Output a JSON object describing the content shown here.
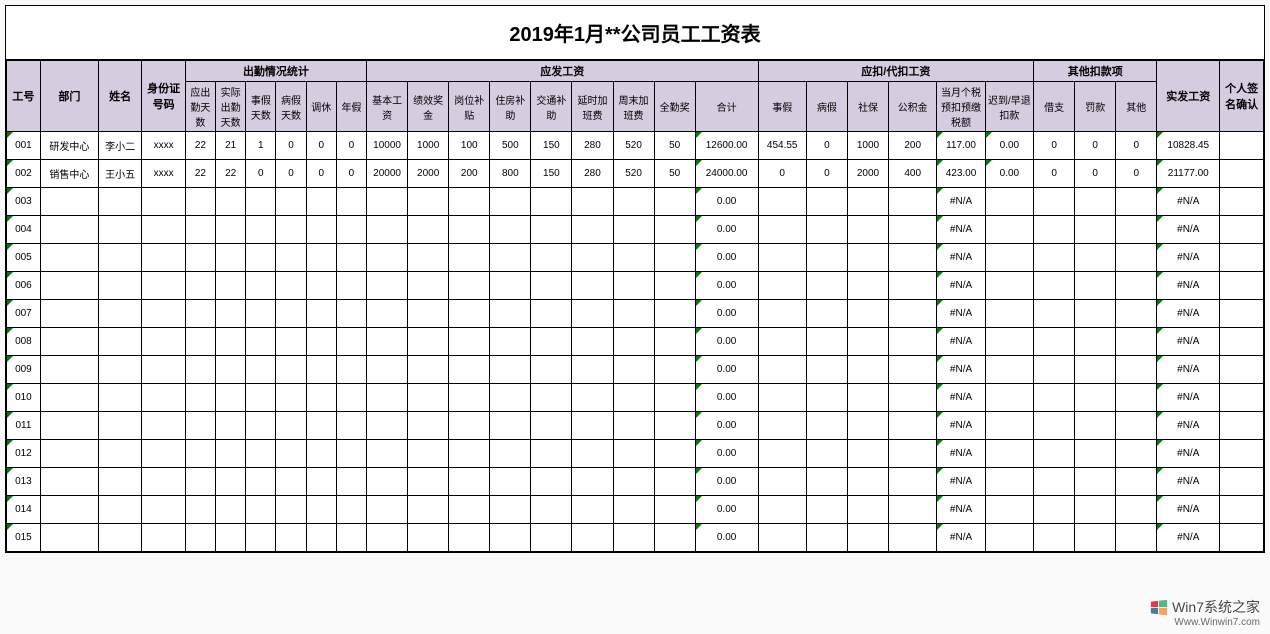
{
  "title": "2019年1月**公司员工工资表",
  "header_bg": "#d5cce0",
  "groups": {
    "attendance": "出勤情况统计",
    "payable": "应发工资",
    "deduct": "应扣/代扣工资",
    "other": "其他扣款项"
  },
  "columns": {
    "id": "工号",
    "dept": "部门",
    "name": "姓名",
    "idno": "身份证号码",
    "att1": "应出勤天数",
    "att2": "实际出勤天数",
    "att3": "事假天数",
    "att4": "病假天数",
    "att5": "调休",
    "att6": "年假",
    "pay1": "基本工资",
    "pay2": "绩效奖金",
    "pay3": "岗位补贴",
    "pay4": "住房补助",
    "pay5": "交通补助",
    "pay6": "延时加班费",
    "pay7": "周末加班费",
    "pay8": "全勤奖",
    "paytotal": "合计",
    "ded1": "事假",
    "ded2": "病假",
    "ded3": "社保",
    "ded4": "公积金",
    "ded5": "当月个税预扣预缴税额",
    "ded6": "迟到/早退扣款",
    "oth1": "借支",
    "oth2": "罚款",
    "oth3": "其他",
    "net": "实发工资",
    "sign": "个人签名确认"
  },
  "rows": [
    {
      "id": "001",
      "dept": "研发中心",
      "name": "李小二",
      "idno": "xxxx",
      "att": [
        22,
        21,
        1,
        0,
        0,
        0
      ],
      "pay": [
        10000,
        1000,
        100,
        500,
        150,
        280,
        520,
        50
      ],
      "total": "12600.00",
      "ded": [
        "454.55",
        "0",
        "1000",
        "200",
        "117.00",
        "0.00"
      ],
      "oth": [
        "0",
        "0",
        "0"
      ],
      "net": "10828.45"
    },
    {
      "id": "002",
      "dept": "销售中心",
      "name": "王小五",
      "idno": "xxxx",
      "att": [
        22,
        22,
        0,
        0,
        0,
        0
      ],
      "pay": [
        20000,
        2000,
        200,
        800,
        150,
        280,
        520,
        50
      ],
      "total": "24000.00",
      "ded": [
        "0",
        "0",
        "2000",
        "400",
        "423.00",
        "0.00"
      ],
      "oth": [
        "0",
        "0",
        "0"
      ],
      "net": "21177.00"
    },
    {
      "id": "003",
      "total": "0.00",
      "tax": "#N/A",
      "net": "#N/A"
    },
    {
      "id": "004",
      "total": "0.00",
      "tax": "#N/A",
      "net": "#N/A"
    },
    {
      "id": "005",
      "total": "0.00",
      "tax": "#N/A",
      "net": "#N/A"
    },
    {
      "id": "006",
      "total": "0.00",
      "tax": "#N/A",
      "net": "#N/A"
    },
    {
      "id": "007",
      "total": "0.00",
      "tax": "#N/A",
      "net": "#N/A"
    },
    {
      "id": "008",
      "total": "0.00",
      "tax": "#N/A",
      "net": "#N/A"
    },
    {
      "id": "009",
      "total": "0.00",
      "tax": "#N/A",
      "net": "#N/A"
    },
    {
      "id": "010",
      "total": "0.00",
      "tax": "#N/A",
      "net": "#N/A"
    },
    {
      "id": "011",
      "total": "0.00",
      "tax": "#N/A",
      "net": "#N/A"
    },
    {
      "id": "012",
      "total": "0.00",
      "tax": "#N/A",
      "net": "#N/A"
    },
    {
      "id": "013",
      "total": "0.00",
      "tax": "#N/A",
      "net": "#N/A"
    },
    {
      "id": "014",
      "total": "0.00",
      "tax": "#N/A",
      "net": "#N/A"
    },
    {
      "id": "015",
      "total": "0.00",
      "tax": "#N/A",
      "net": "#N/A"
    }
  ],
  "watermark": {
    "text": "Win7系统之家",
    "url": "Www.Winwin7.com"
  }
}
